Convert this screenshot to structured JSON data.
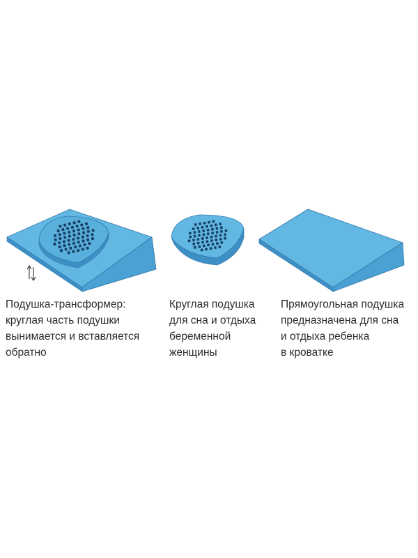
{
  "colors": {
    "top": "#62b8e3",
    "front": "#3e8fc6",
    "side": "#4ba1d3",
    "edge": "#2f76aa",
    "dots": "#173f63",
    "text": "#2c2c2c"
  },
  "icons": {
    "up_down_arrows": "up-down-arrows-icon",
    "vent_holes": "vent-holes-icon"
  },
  "items": [
    {
      "name": "transformer",
      "caption": "Подушка-трансформер:\nкруглая часть подушки\nвынимается и вставляется\nобратно"
    },
    {
      "name": "round",
      "caption": "Круглая подушка\nдля сна и отдыха\nбеременной\nженщины"
    },
    {
      "name": "rectangular",
      "caption": "Прямоугольная подушка\nпредназначена для сна\nи отдыха ребенка\nв кроватке"
    }
  ]
}
